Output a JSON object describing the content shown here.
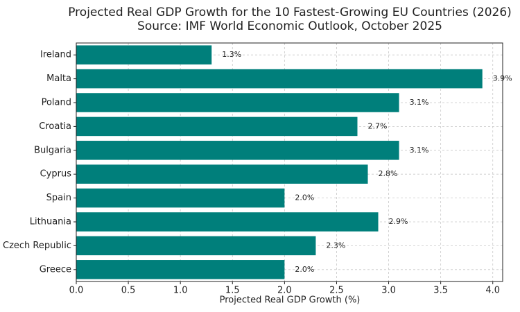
{
  "chart_data": {
    "type": "hbar",
    "title": "Projected Real GDP Growth for the 10 Fastest-Growing EU Countries (2026)",
    "subtitle": "Source: IMF World Economic Outlook, October 2025",
    "x_label": "Projected Real GDP Growth (%)",
    "categories": [
      "Ireland",
      "Malta",
      "Poland",
      "Croatia",
      "Bulgaria",
      "Cyprus",
      "Spain",
      "Lithuania",
      "Czech Republic",
      "Greece"
    ],
    "values": [
      1.3,
      3.9,
      3.1,
      2.7,
      3.1,
      2.8,
      2.0,
      2.9,
      2.3,
      2.0
    ],
    "value_labels": [
      "1.3%",
      "3.9%",
      "3.1%",
      "2.7%",
      "3.1%",
      "2.8%",
      "2.0%",
      "2.9%",
      "2.3%",
      "2.0%"
    ],
    "color": "#007f7b",
    "xlim": [
      0,
      4.095
    ],
    "xticks": [
      {
        "value": 0,
        "label": "0.0"
      },
      0.5,
      {
        "value": 1,
        "label": "1.0"
      },
      1.5,
      {
        "value": 2,
        "label": "2.0"
      },
      2.5,
      {
        "value": 3,
        "label": "3.0"
      },
      3.5,
      {
        "value": 4,
        "label": "4.0"
      }
    ],
    "grid": true
  }
}
